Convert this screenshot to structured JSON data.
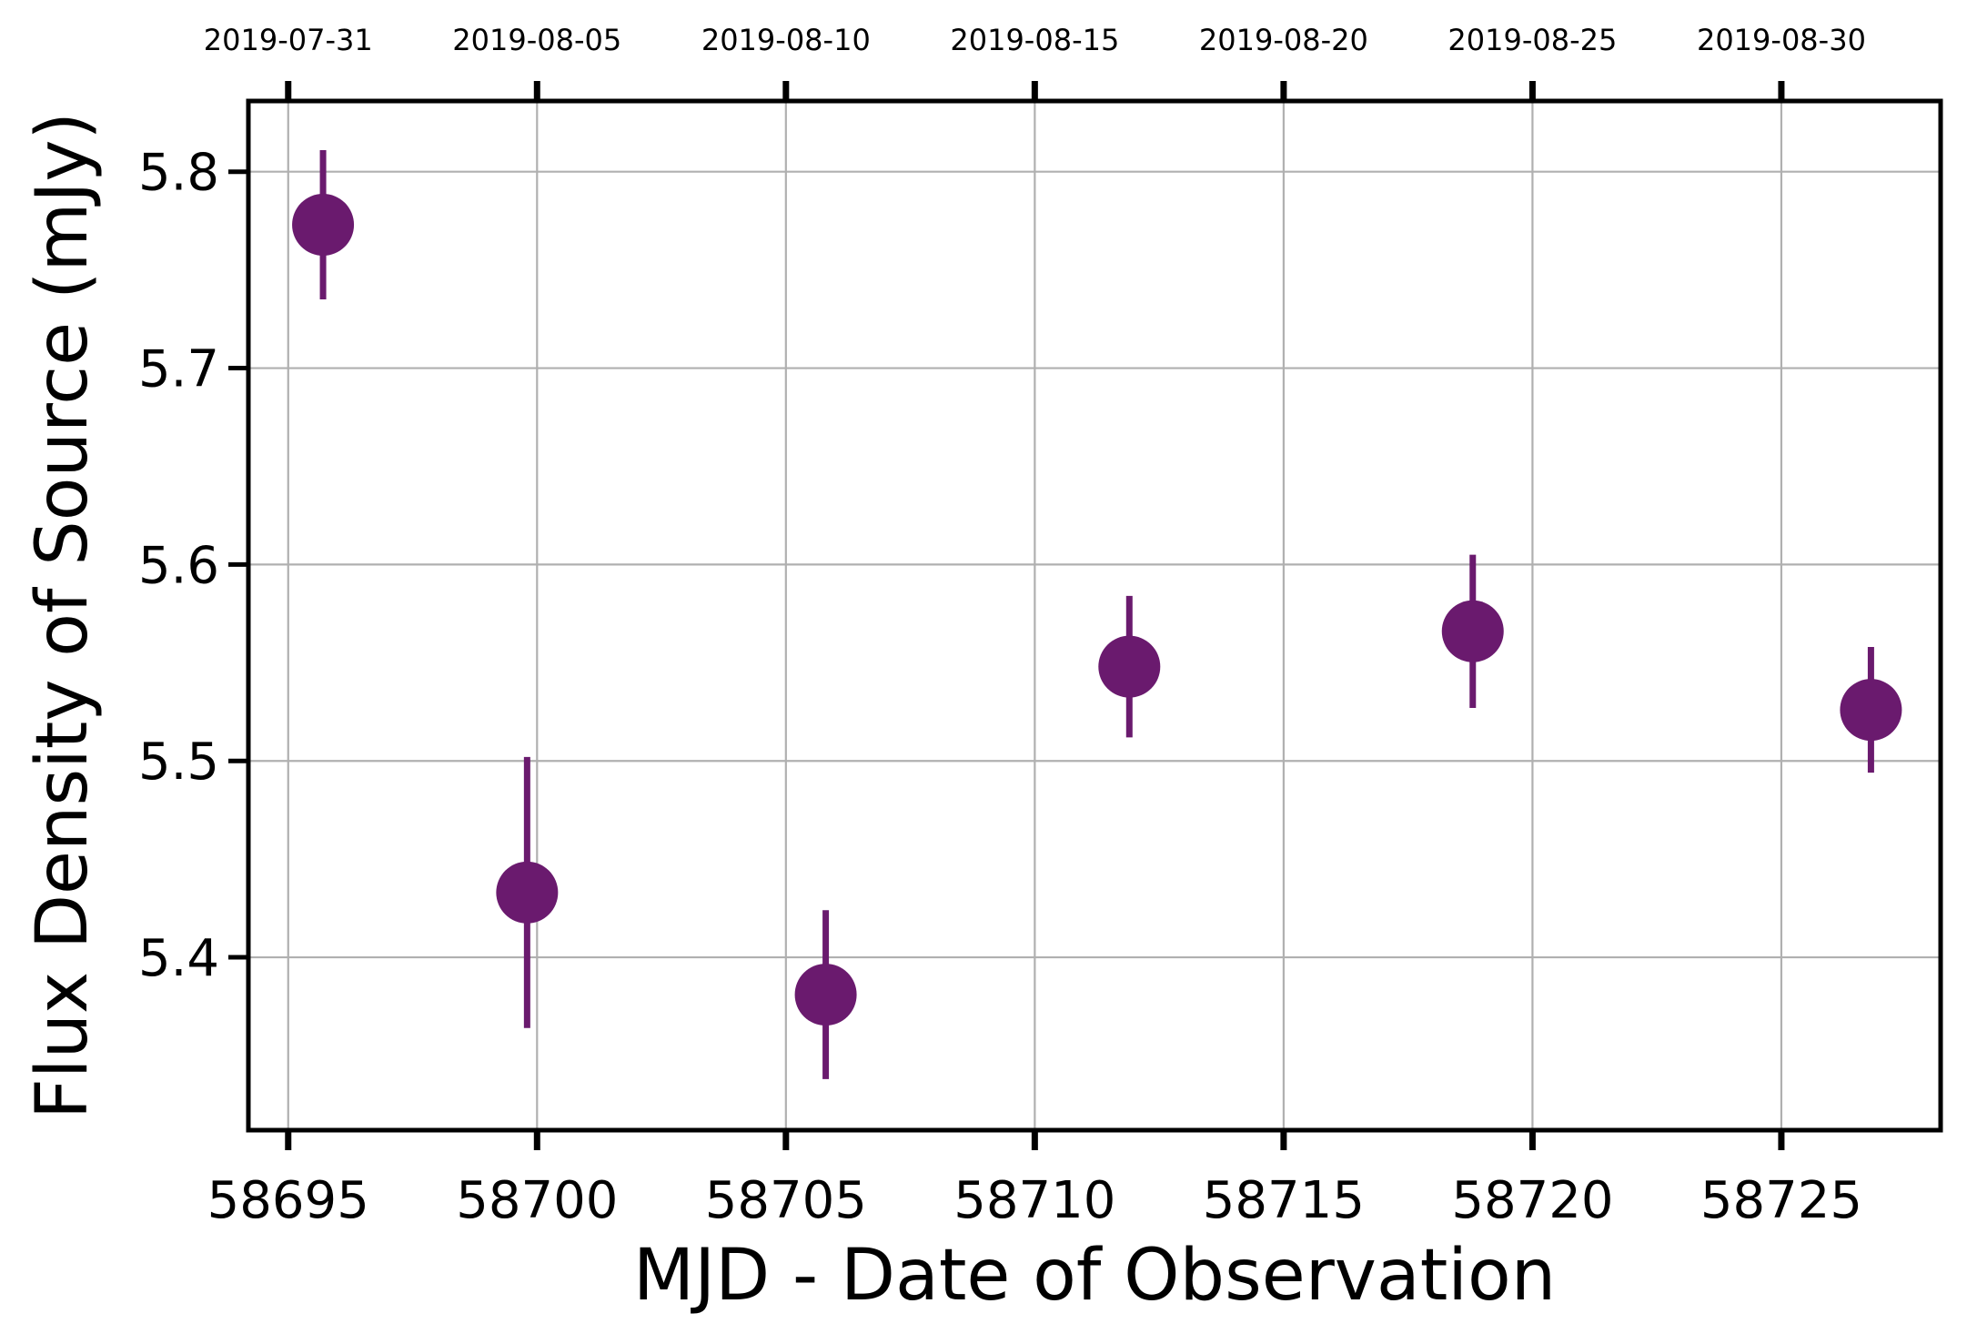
{
  "chart_data": {
    "type": "scatter",
    "xlabel": "MJD - Date of Observation",
    "ylabel": "Flux Density of Source (mJy)",
    "xlim": [
      58694.2,
      58728.2
    ],
    "ylim": [
      5.312,
      5.836
    ],
    "x_ticks": [
      58695,
      58700,
      58705,
      58710,
      58715,
      58720,
      58725
    ],
    "x_tick_labels": [
      "58695",
      "58700",
      "58705",
      "58710",
      "58715",
      "58720",
      "58725"
    ],
    "y_ticks": [
      5.4,
      5.5,
      5.6,
      5.7,
      5.8
    ],
    "y_tick_labels": [
      "5.4",
      "5.5",
      "5.6",
      "5.7",
      "5.8"
    ],
    "top_ticks": [
      58695,
      58700,
      58705,
      58710,
      58715,
      58720,
      58725
    ],
    "top_tick_labels": [
      "2019-07-31",
      "2019-08-05",
      "2019-08-10",
      "2019-08-15",
      "2019-08-20",
      "2019-08-25",
      "2019-08-30"
    ],
    "grid": true,
    "marker_color": "#6a1a6e",
    "series": [
      {
        "x": [
          58695.7,
          58699.8,
          58705.8,
          58711.9,
          58718.8,
          58726.8
        ],
        "y": [
          5.773,
          5.433,
          5.381,
          5.548,
          5.566,
          5.526
        ],
        "yerr": [
          0.038,
          0.069,
          0.043,
          0.036,
          0.039,
          0.032
        ]
      }
    ]
  }
}
